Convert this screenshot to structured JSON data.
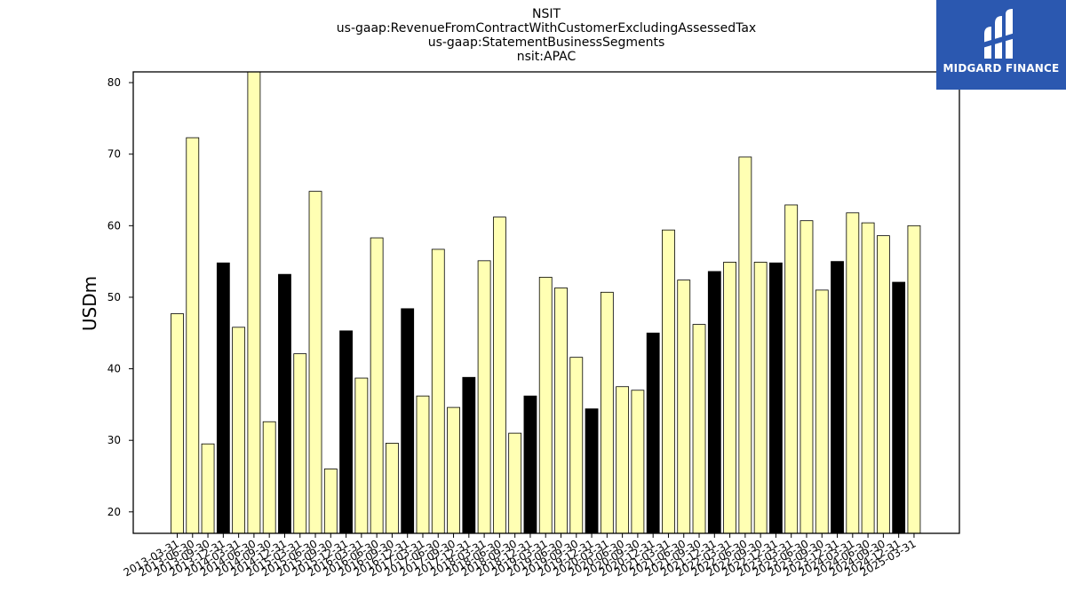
{
  "title_lines": [
    "NSIT",
    "us-gaap:RevenueFromContractWithCustomerExcludingAssessedTax",
    "us-gaap:StatementBusinessSegments",
    "nsit:APAC"
  ],
  "logo": {
    "text": "MIDGARD FINANCE",
    "icon": "midgard-logo-mark",
    "background": "#2b58b0"
  },
  "chart_data": {
    "type": "bar",
    "title": "NSIT\nus-gaap:RevenueFromContractWithCustomerExcludingAssessedTax\nus-gaap:StatementBusinessSegments\nnsit:APAC",
    "xlabel": "",
    "ylabel": "USDm",
    "ylim": [
      17,
      81.5
    ],
    "yticks": [
      20,
      30,
      40,
      50,
      60,
      70,
      80
    ],
    "grid": false,
    "colors": {
      "quarter_bar": "#ffffb3",
      "annual_bar": "#000000",
      "edge": "#000000"
    },
    "categories": [
      "2013-03-31",
      "2013-06-30",
      "2013-09-30",
      "2013-12-31",
      "2014-03-31",
      "2014-06-30",
      "2014-09-30",
      "2014-12-31",
      "2015-03-31",
      "2015-06-30",
      "2015-09-30",
      "2015-12-31",
      "2016-03-31",
      "2016-06-30",
      "2016-09-30",
      "2016-12-31",
      "2017-03-31",
      "2017-06-30",
      "2017-09-30",
      "2017-12-31",
      "2018-03-31",
      "2018-06-30",
      "2018-09-30",
      "2018-12-31",
      "2019-03-31",
      "2019-06-30",
      "2019-09-30",
      "2019-12-31",
      "2020-03-31",
      "2020-06-30",
      "2020-09-30",
      "2020-12-31",
      "2021-03-31",
      "2021-06-30",
      "2021-09-30",
      "2021-12-31",
      "2022-03-31",
      "2022-06-30",
      "2022-09-30",
      "2022-12-31",
      "2023-03-31",
      "2023-06-30",
      "2023-09-30",
      "2023-12-31",
      "2024-03-31",
      "2024-06-30",
      "2024-09-30",
      "2024-12-31",
      "2025-03-31"
    ],
    "values": [
      47.7,
      72.3,
      29.5,
      54.8,
      45.8,
      82.0,
      32.6,
      53.2,
      42.1,
      64.8,
      26.0,
      45.3,
      38.7,
      58.3,
      29.6,
      48.4,
      36.2,
      56.7,
      34.6,
      38.8,
      55.1,
      61.2,
      31.0,
      36.2,
      52.8,
      51.3,
      41.6,
      34.4,
      50.7,
      37.5,
      37.0,
      45.0,
      59.4,
      52.4,
      46.2,
      53.6,
      54.9,
      69.6,
      54.9,
      54.8,
      62.9,
      60.7,
      51.0,
      55.0,
      61.8,
      60.4,
      58.6,
      52.1,
      60.0
    ],
    "annual_flags": [
      false,
      false,
      false,
      true,
      false,
      false,
      false,
      true,
      false,
      false,
      false,
      true,
      false,
      false,
      false,
      true,
      false,
      false,
      false,
      true,
      false,
      false,
      false,
      true,
      false,
      false,
      false,
      true,
      false,
      false,
      false,
      true,
      false,
      false,
      false,
      true,
      false,
      false,
      false,
      true,
      false,
      false,
      false,
      true,
      false,
      false,
      false,
      true,
      false
    ]
  }
}
